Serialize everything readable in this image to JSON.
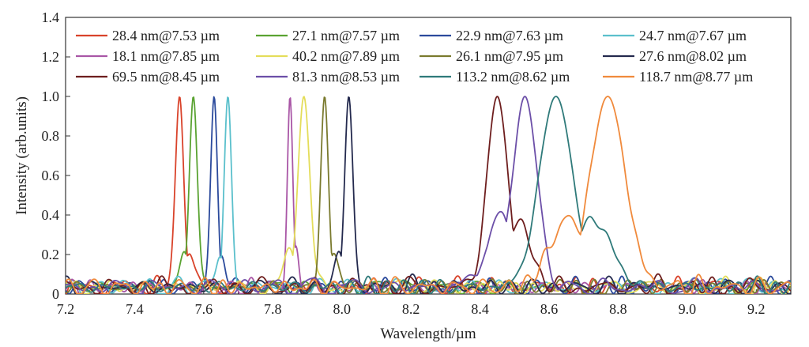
{
  "chart_data": {
    "type": "line",
    "title": "",
    "xlabel": "Wavelength/µm",
    "ylabel": "Intensity (arb.units)",
    "xlim": [
      7.2,
      9.3
    ],
    "ylim": [
      0,
      1.4
    ],
    "xticks": [
      "7.2",
      "7.4",
      "7.6",
      "7.8",
      "8.0",
      "8.2",
      "8.4",
      "8.6",
      "8.8",
      "9.0",
      "9.2"
    ],
    "yticks": [
      "0",
      "0.2",
      "0.4",
      "0.6",
      "0.8",
      "1.0",
      "1.2",
      "1.4"
    ],
    "grid": false,
    "legend_position": "top",
    "series": [
      {
        "name": "28.4 nm@7.53 µm",
        "color": "#d9432b",
        "center": 7.53,
        "fwhm": 0.0284,
        "peak": 1.0
      },
      {
        "name": "27.1 nm@7.57 µm",
        "color": "#5aa332",
        "center": 7.57,
        "fwhm": 0.0271,
        "peak": 1.0
      },
      {
        "name": "22.9 nm@7.63 µm",
        "color": "#2b4a9c",
        "center": 7.63,
        "fwhm": 0.0229,
        "peak": 1.0
      },
      {
        "name": "24.7 nm@7.67 µm",
        "color": "#5bc0cc",
        "center": 7.67,
        "fwhm": 0.0247,
        "peak": 1.0
      },
      {
        "name": "18.1 nm@7.85 µm",
        "color": "#a956a6",
        "center": 7.85,
        "fwhm": 0.0181,
        "peak": 1.0
      },
      {
        "name": "40.2 nm@7.89 µm",
        "color": "#e4dd5a",
        "center": 7.89,
        "fwhm": 0.0402,
        "peak": 1.0
      },
      {
        "name": "26.1 nm@7.95 µm",
        "color": "#7a7a2e",
        "center": 7.95,
        "fwhm": 0.0261,
        "peak": 1.0
      },
      {
        "name": "27.6 nm@8.02 µm",
        "color": "#242a4e",
        "center": 8.02,
        "fwhm": 0.0276,
        "peak": 1.0
      },
      {
        "name": "69.5 nm@8.45 µm",
        "color": "#6e1e1e",
        "center": 8.45,
        "fwhm": 0.0695,
        "peak": 1.0
      },
      {
        "name": "81.3 nm@8.53 µm",
        "color": "#6c4fa8",
        "center": 8.53,
        "fwhm": 0.0813,
        "peak": 1.0
      },
      {
        "name": "113.2 nm@8.62 µm",
        "color": "#2f7a7a",
        "center": 8.62,
        "fwhm": 0.1132,
        "peak": 1.0
      },
      {
        "name": "118.7 nm@8.77 µm",
        "color": "#f08a3c",
        "center": 8.77,
        "fwhm": 0.1187,
        "peak": 1.0
      }
    ]
  }
}
